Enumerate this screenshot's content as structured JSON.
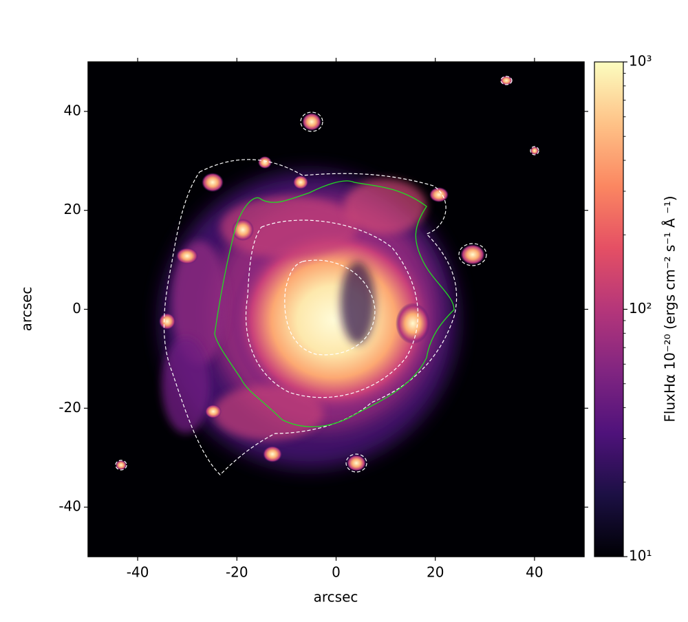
{
  "chart_data": {
    "type": "image",
    "x_label": "arcsec",
    "y_label": "arcsec",
    "xlim": [
      -50,
      50
    ],
    "ylim": [
      -50,
      50
    ],
    "xticks": [
      -40,
      -20,
      0,
      20,
      40
    ],
    "yticks": [
      -40,
      -20,
      0,
      20,
      40
    ],
    "colormap": "magma",
    "colorbar": {
      "label": "FluxHα 10⁻²⁰ (ergs cm⁻² s⁻¹ Å ⁻¹)",
      "log": true,
      "lim": [
        10,
        1000
      ],
      "ticks": [
        {
          "value": 10,
          "label": "10¹"
        },
        {
          "value": 100,
          "label": "10²"
        },
        {
          "value": 1000,
          "label": "10³"
        }
      ]
    }
  }
}
